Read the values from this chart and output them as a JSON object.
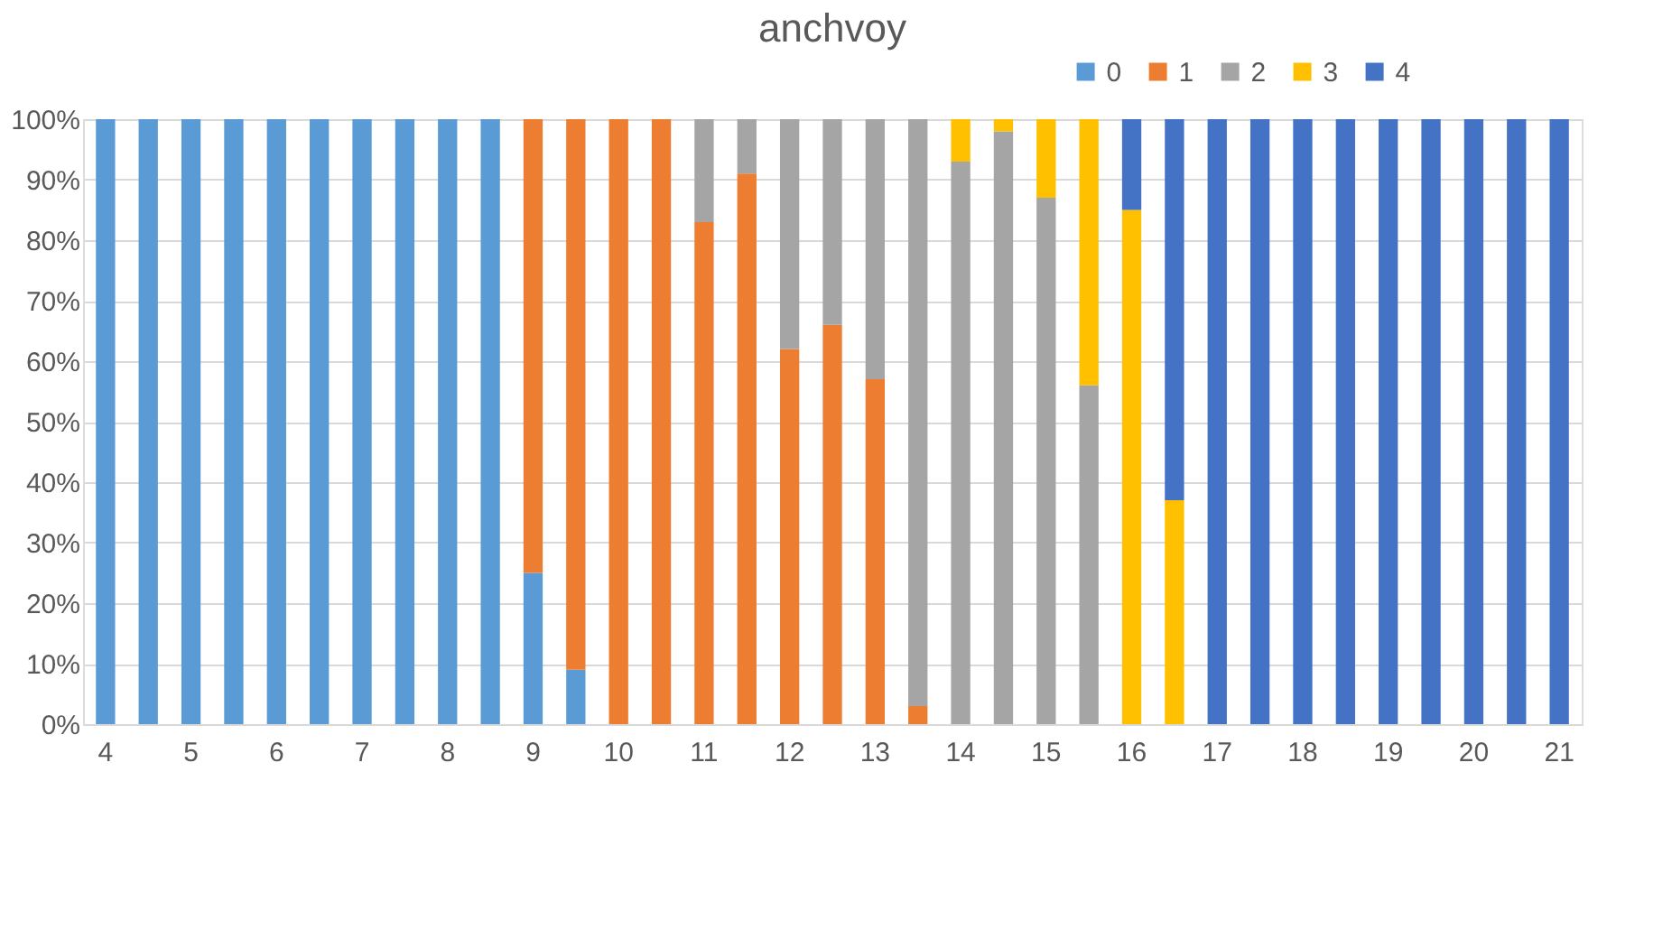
{
  "chart_data": {
    "type": "bar",
    "title": "anchvoy",
    "stacked": true,
    "categories": [
      "4",
      null,
      "5",
      null,
      "6",
      null,
      "7",
      null,
      "8",
      null,
      "9",
      null,
      "10",
      null,
      "11",
      null,
      "12",
      null,
      "13",
      null,
      "14",
      null,
      "15",
      null,
      "16",
      null,
      "17",
      null,
      "18",
      null,
      "19",
      null,
      "20",
      null,
      "21"
    ],
    "series": [
      {
        "name": "0",
        "color": "#5b9bd5",
        "values": [
          100,
          100,
          100,
          100,
          100,
          100,
          100,
          100,
          100,
          100,
          25,
          9,
          0,
          0,
          0,
          0,
          0,
          0,
          0,
          0,
          0,
          0,
          0,
          0,
          0,
          0,
          0,
          0,
          0,
          0,
          0,
          0,
          0,
          0,
          0
        ]
      },
      {
        "name": "1",
        "color": "#ed7d31",
        "values": [
          0,
          0,
          0,
          0,
          0,
          0,
          0,
          0,
          0,
          0,
          75,
          91,
          100,
          100,
          83,
          91,
          62,
          66,
          57,
          3,
          0,
          0,
          0,
          0,
          0,
          0,
          0,
          0,
          0,
          0,
          0,
          0,
          0,
          0,
          0
        ]
      },
      {
        "name": "2",
        "color": "#a5a5a5",
        "values": [
          0,
          0,
          0,
          0,
          0,
          0,
          0,
          0,
          0,
          0,
          0,
          0,
          0,
          0,
          17,
          9,
          38,
          34,
          43,
          97,
          93,
          98,
          87,
          56,
          0,
          0,
          0,
          0,
          0,
          0,
          0,
          0,
          0,
          0,
          0
        ]
      },
      {
        "name": "3",
        "color": "#ffc000",
        "values": [
          0,
          0,
          0,
          0,
          0,
          0,
          0,
          0,
          0,
          0,
          0,
          0,
          0,
          0,
          0,
          0,
          0,
          0,
          0,
          0,
          7,
          2,
          13,
          44,
          85,
          37,
          0,
          0,
          0,
          0,
          0,
          0,
          0,
          0,
          0
        ]
      },
      {
        "name": "4",
        "color": "#4472c4",
        "values": [
          0,
          0,
          0,
          0,
          0,
          0,
          0,
          0,
          0,
          0,
          0,
          0,
          0,
          0,
          0,
          0,
          0,
          0,
          0,
          0,
          0,
          0,
          0,
          0,
          15,
          63,
          100,
          100,
          100,
          100,
          100,
          100,
          100,
          100,
          100
        ]
      }
    ],
    "ylim": [
      0,
      100
    ],
    "yticks": [
      {
        "value": 0,
        "label": "0%"
      },
      {
        "value": 10,
        "label": "10%"
      },
      {
        "value": 20,
        "label": "20%"
      },
      {
        "value": 30,
        "label": "30%"
      },
      {
        "value": 40,
        "label": "40%"
      },
      {
        "value": 50,
        "label": "50%"
      },
      {
        "value": 60,
        "label": "60%"
      },
      {
        "value": 70,
        "label": "70%"
      },
      {
        "value": 80,
        "label": "80%"
      },
      {
        "value": 90,
        "label": "90%"
      },
      {
        "value": 100,
        "label": "100%"
      }
    ],
    "grid": "y",
    "legend": "top right"
  }
}
